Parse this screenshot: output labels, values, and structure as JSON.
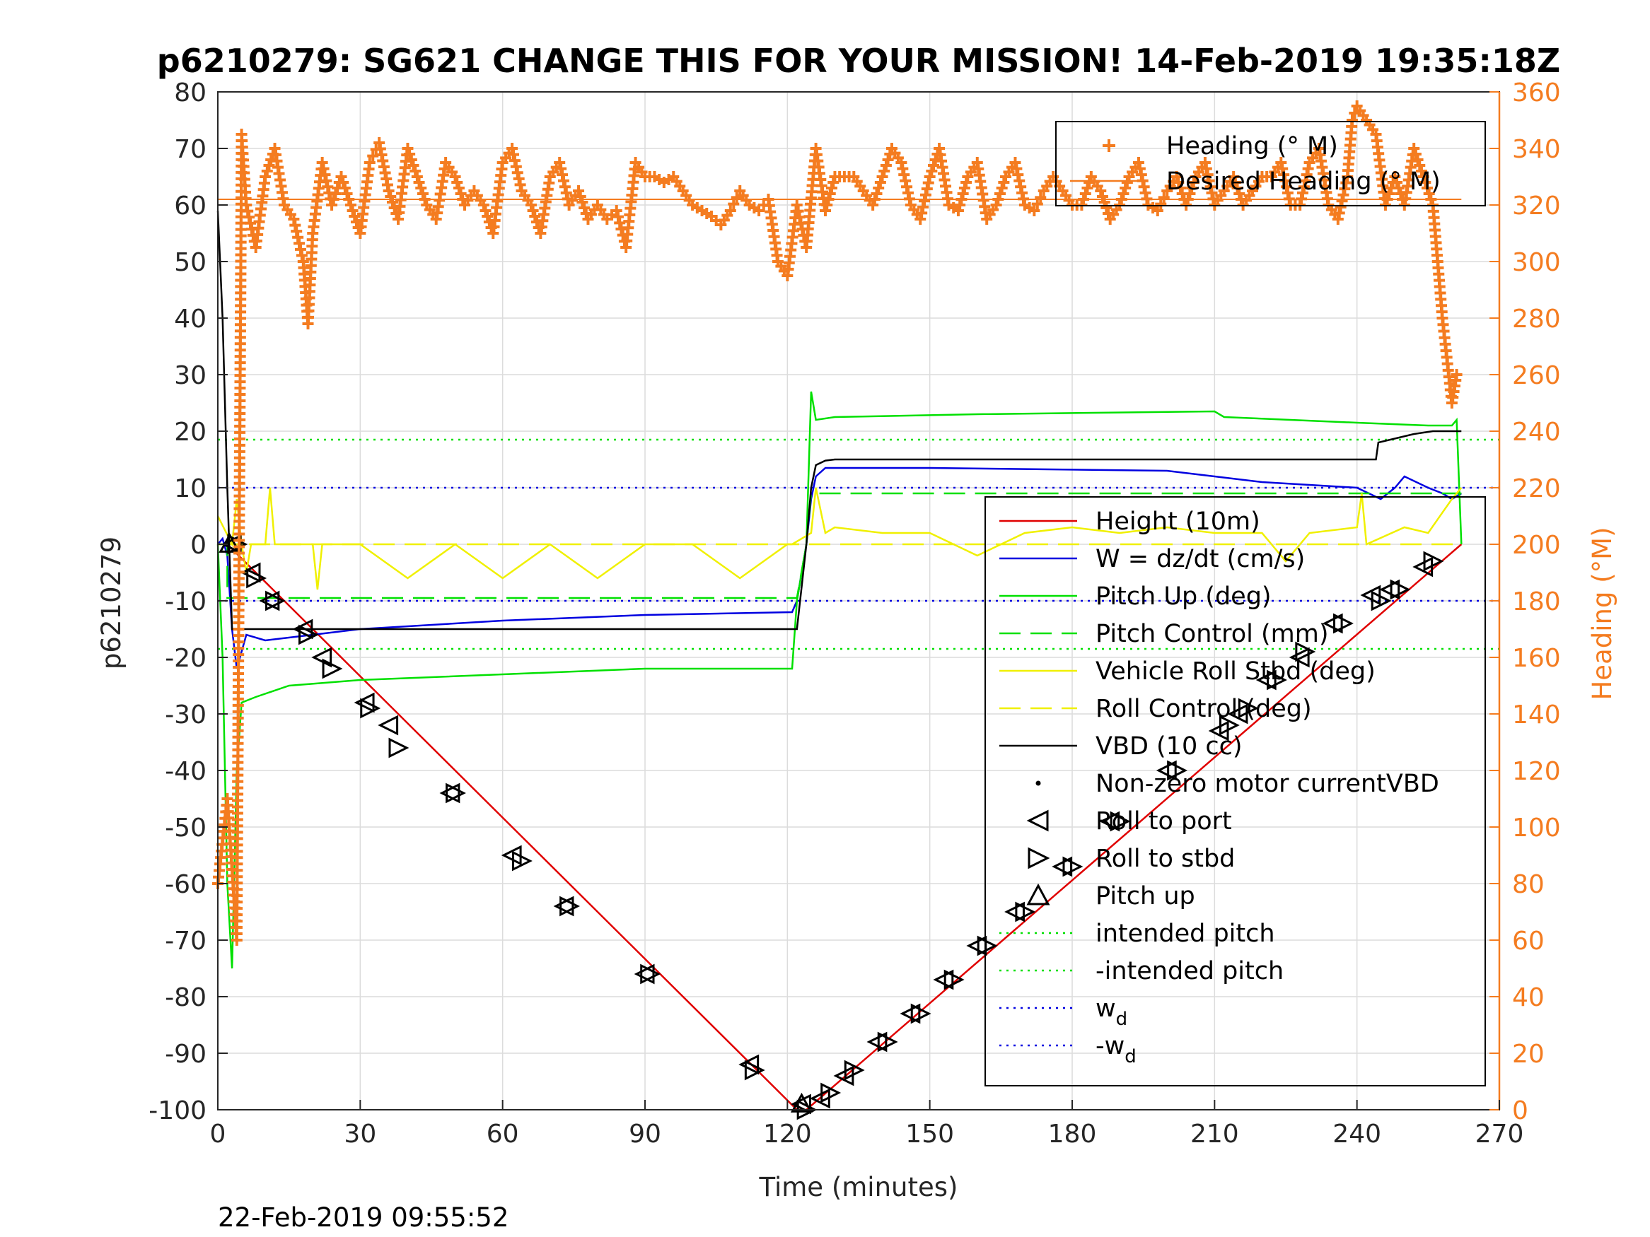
{
  "chart_data": {
    "type": "line",
    "title": "p6210279: SG621 CHANGE THIS FOR YOUR MISSION! 14-Feb-2019 19:35:18Z",
    "xlabel": "Time (minutes)",
    "ylabel": "p6210279",
    "y2label": "Heading (°M)",
    "xlim": [
      0,
      270
    ],
    "ylim": [
      -100,
      80
    ],
    "y2lim": [
      0,
      360
    ],
    "xticks": [
      "0",
      "30",
      "60",
      "90",
      "120",
      "150",
      "180",
      "210",
      "240",
      "270"
    ],
    "yticks": [
      "80",
      "70",
      "60",
      "50",
      "40",
      "30",
      "20",
      "10",
      "0",
      "-10",
      "-20",
      "-30",
      "-40",
      "-50",
      "-60",
      "-70",
      "-80",
      "-90",
      "-100"
    ],
    "y2ticks": [
      "360",
      "340",
      "320",
      "300",
      "280",
      "260",
      "240",
      "220",
      "200",
      "180",
      "160",
      "140",
      "120",
      "100",
      "80",
      "60",
      "40",
      "20",
      "0"
    ],
    "grid": true,
    "timestamp": "22-Feb-2019 09:55:52",
    "colors": {
      "height": "#e00000",
      "w": "#0000e0",
      "pitch": "#00e000",
      "roll": "#f0f000",
      "vbd": "#000000",
      "heading": "#f47c20",
      "grid": "#dcdcdc"
    },
    "legend_top": {
      "placement": "top-right",
      "entries": [
        {
          "label": "Heading (° M)",
          "style": "plus",
          "color": "#f47c20"
        },
        {
          "label": "Desired Heading (° M)",
          "style": "line",
          "color": "#f47c20"
        }
      ]
    },
    "legend_main": {
      "placement": "right",
      "entries": [
        {
          "label": "Height (10m)",
          "style": "line",
          "color": "#e00000"
        },
        {
          "label": "W = dz/dt (cm/s)",
          "style": "line",
          "color": "#0000e0"
        },
        {
          "label": "Pitch Up (deg)",
          "style": "line",
          "color": "#00e000"
        },
        {
          "label": "Pitch Control (mm)",
          "style": "dash",
          "color": "#00e000"
        },
        {
          "label": "Vehicle Roll Stbd (deg)",
          "style": "line",
          "color": "#f0f000"
        },
        {
          "label": "Roll Control (deg)",
          "style": "dash",
          "color": "#f0f000"
        },
        {
          "label": "VBD (10 cc)",
          "style": "line",
          "color": "#000000"
        },
        {
          "label": "Non-zero motor currentVBD",
          "style": "dot",
          "color": "#000000"
        },
        {
          "label": "Roll to port",
          "style": "tri-left",
          "color": "#000000"
        },
        {
          "label": "Roll to stbd",
          "style": "tri-right",
          "color": "#000000"
        },
        {
          "label": "Pitch up",
          "style": "tri-up",
          "color": "#000000"
        },
        {
          "label": "intended pitch",
          "style": "dotted",
          "color": "#00e000"
        },
        {
          "label": "-intended pitch",
          "style": "dotted",
          "color": "#00e000"
        },
        {
          "label": "w",
          "sub": "d",
          "style": "dotted",
          "color": "#0000e0"
        },
        {
          "label": "-w",
          "sub": "d",
          "style": "dotted",
          "color": "#0000e0"
        }
      ]
    },
    "reference_lines": [
      {
        "name": "intended pitch",
        "y": 18.5,
        "color": "#00e000"
      },
      {
        "name": "-intended pitch",
        "y": -18.5,
        "color": "#00e000"
      },
      {
        "name": "w_d",
        "y": 10,
        "color": "#0000e0"
      },
      {
        "name": "-w_d",
        "y": -10,
        "color": "#0000e0"
      }
    ],
    "desired_heading": 322,
    "series": [
      {
        "name": "Height (10m)",
        "color": "#e00000",
        "x": [
          2,
          122,
          124,
          262
        ],
        "y": [
          0,
          -100,
          -100,
          0
        ]
      },
      {
        "name": "W = dz/dt (cm/s)",
        "color": "#0000e0",
        "x": [
          0,
          1,
          2,
          3,
          4,
          6,
          10,
          20,
          30,
          60,
          90,
          121,
          122,
          124,
          125,
          126,
          128,
          150,
          200,
          210,
          220,
          240,
          245,
          248,
          250,
          255,
          258,
          260,
          262
        ],
        "y": [
          0,
          1,
          -2,
          -15,
          -22,
          -16,
          -17,
          -16,
          -15,
          -13.5,
          -12.5,
          -12,
          -10,
          0,
          8,
          12,
          13.5,
          13.5,
          13,
          12,
          11,
          10,
          8,
          10,
          12,
          10,
          9,
          8,
          9
        ]
      },
      {
        "name": "Pitch Up (deg)",
        "color": "#00e000",
        "x": [
          0,
          1,
          2,
          3,
          4,
          5,
          8,
          15,
          30,
          60,
          90,
          121,
          122,
          124,
          125,
          126,
          130,
          160,
          210,
          212,
          240,
          255,
          260,
          261,
          262
        ],
        "y": [
          0,
          -20,
          -60,
          -75,
          -40,
          -28,
          -27,
          -25,
          -24,
          -23,
          -22,
          -22,
          -10,
          0,
          27,
          22,
          22.5,
          23,
          23.5,
          22.5,
          21.5,
          21,
          21,
          22,
          0
        ]
      },
      {
        "name": "Pitch Control (mm)",
        "color": "#00e000",
        "dash": true,
        "x": [
          0,
          2,
          2,
          120,
          122,
          124,
          125,
          262
        ],
        "y": [
          0,
          0,
          -9.5,
          -9.5,
          -9.5,
          0,
          9,
          9
        ]
      },
      {
        "name": "Vehicle Roll Stbd (deg)",
        "color": "#f0f000",
        "x": [
          0,
          3,
          4,
          5,
          6,
          7,
          10,
          11,
          12,
          20,
          21,
          22,
          30,
          40,
          50,
          60,
          70,
          80,
          90,
          100,
          110,
          120,
          121,
          125,
          126,
          128,
          130,
          140,
          150,
          160,
          170,
          180,
          190,
          200,
          210,
          220,
          225,
          230,
          240,
          241,
          242,
          250,
          255,
          260,
          262
        ],
        "y": [
          5,
          0,
          8,
          0,
          -5,
          0,
          0,
          10,
          0,
          0,
          -8,
          0,
          0,
          -6,
          0,
          -6,
          0,
          -6,
          0,
          0,
          -6,
          0,
          0,
          2,
          10,
          2,
          3,
          2,
          2,
          -2,
          2,
          3,
          2,
          3,
          2,
          2,
          -3,
          2,
          3,
          9,
          0,
          3,
          2,
          8,
          10
        ]
      },
      {
        "name": "Roll Control (deg)",
        "color": "#f0f000",
        "dash": true,
        "x": [
          0,
          262
        ],
        "y": [
          0,
          0
        ]
      },
      {
        "name": "VBD (10 cc)",
        "color": "#000000",
        "x": [
          0,
          1,
          2,
          3,
          122,
          124,
          125,
          126,
          128,
          130,
          244,
          244.5,
          252,
          256,
          262
        ],
        "y": [
          59,
          40,
          10,
          -15,
          -15,
          0,
          10,
          14,
          14.8,
          15,
          15,
          18,
          19.5,
          20,
          20
        ]
      },
      {
        "name": "Heading (° M)",
        "color": "#f47c20",
        "axis": "right",
        "marker": "plus",
        "x": [
          0,
          2,
          4,
          5,
          6,
          8,
          10,
          12,
          14,
          16,
          18,
          19,
          20,
          22,
          24,
          26,
          28,
          30,
          32,
          34,
          36,
          38,
          40,
          42,
          44,
          46,
          48,
          50,
          52,
          54,
          56,
          58,
          60,
          62,
          64,
          66,
          68,
          70,
          72,
          74,
          76,
          78,
          80,
          82,
          84,
          86,
          88,
          90,
          92,
          94,
          96,
          98,
          100,
          102,
          104,
          106,
          108,
          110,
          112,
          114,
          116,
          118,
          120,
          122,
          124,
          126,
          128,
          130,
          132,
          134,
          136,
          138,
          140,
          142,
          144,
          146,
          148,
          150,
          152,
          154,
          156,
          158,
          160,
          162,
          164,
          166,
          168,
          170,
          172,
          174,
          176,
          178,
          180,
          182,
          184,
          186,
          188,
          190,
          192,
          194,
          196,
          198,
          200,
          202,
          204,
          206,
          208,
          210,
          212,
          214,
          216,
          218,
          220,
          222,
          224,
          226,
          228,
          230,
          232,
          234,
          236,
          238,
          239,
          240,
          242,
          244,
          246,
          248,
          250,
          252,
          254,
          256,
          258,
          260,
          261
        ],
        "y": [
          80,
          110,
          60,
          345,
          320,
          305,
          330,
          340,
          320,
          315,
          300,
          278,
          310,
          335,
          320,
          330,
          320,
          310,
          335,
          342,
          325,
          315,
          340,
          330,
          320,
          315,
          335,
          330,
          320,
          325,
          320,
          310,
          335,
          340,
          325,
          320,
          310,
          330,
          335,
          320,
          325,
          315,
          320,
          315,
          318,
          305,
          335,
          330,
          330,
          328,
          330,
          325,
          320,
          318,
          316,
          313,
          318,
          325,
          320,
          318,
          322,
          300,
          295,
          320,
          305,
          340,
          318,
          330,
          330,
          330,
          325,
          320,
          330,
          340,
          335,
          320,
          315,
          330,
          340,
          320,
          318,
          330,
          335,
          315,
          320,
          330,
          335,
          320,
          318,
          325,
          330,
          325,
          320,
          320,
          330,
          325,
          315,
          320,
          330,
          335,
          320,
          318,
          325,
          330,
          320,
          330,
          335,
          320,
          325,
          330,
          320,
          325,
          330,
          330,
          335,
          320,
          320,
          335,
          340,
          320,
          315,
          330,
          350,
          355,
          350,
          345,
          320,
          330,
          320,
          340,
          330,
          320,
          280,
          250,
          260
        ]
      },
      {
        "name": "Desired Heading (° M)",
        "color": "#f47c20",
        "axis": "right",
        "x": [
          0,
          262
        ],
        "y": [
          322,
          322
        ]
      }
    ],
    "markers": {
      "roll_to_port": {
        "x": [
          3,
          7,
          11,
          18,
          22,
          31,
          36,
          49,
          62,
          73,
          90,
          112,
          123,
          127,
          132,
          139,
          146,
          153,
          160,
          168,
          178,
          188,
          200,
          211,
          215,
          221,
          228,
          235,
          243,
          247,
          254
        ],
        "y": [
          0,
          -5,
          -10,
          -15,
          -20,
          -28,
          -32,
          -44,
          -55,
          -64,
          -76,
          -92,
          -99,
          -98,
          -94,
          -88,
          -83,
          -77,
          -71,
          -65,
          -57,
          -49,
          -40,
          -33,
          -30,
          -24,
          -20,
          -14,
          -9,
          -8,
          -4
        ]
      },
      "roll_to_stbd": {
        "x": [
          4,
          8,
          12,
          19,
          24,
          32,
          38,
          50,
          64,
          74,
          91,
          113,
          124,
          129,
          134,
          141,
          148,
          155,
          162,
          170,
          180,
          190,
          202,
          213,
          217,
          223,
          229,
          237,
          245,
          249,
          256
        ],
        "y": [
          0,
          -6,
          -10,
          -16,
          -22,
          -29,
          -36,
          -44,
          -56,
          -64,
          -76,
          -93,
          -100,
          -97,
          -93,
          -88,
          -83,
          -77,
          -71,
          -65,
          -57,
          -49,
          -40,
          -32,
          -29,
          -24,
          -19,
          -14,
          -10,
          -8,
          -3
        ]
      },
      "pitch_up": {
        "x": [
          2.5,
          123
        ],
        "y": [
          0,
          -99
        ]
      }
    }
  }
}
